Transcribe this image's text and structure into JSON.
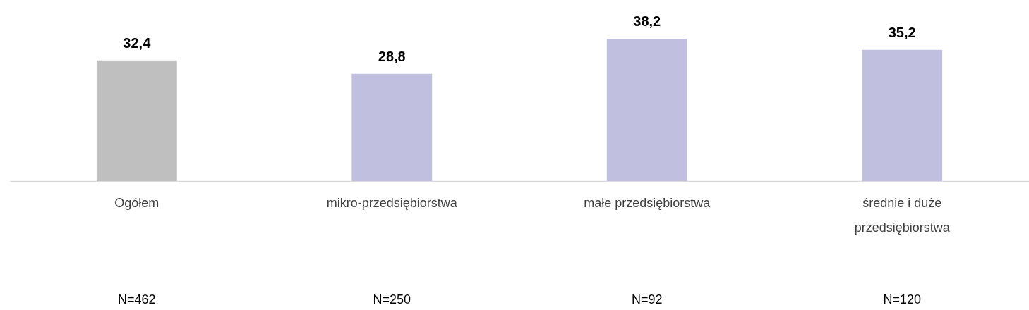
{
  "chart_data": {
    "type": "bar",
    "categories": [
      "Ogółem",
      "mikro-przedsiębiorstwa",
      "małe przedsiębiorstwa",
      "średnie i duże przedsiębiorstwa"
    ],
    "values": [
      32.4,
      28.8,
      38.2,
      35.2
    ],
    "colors": [
      "#bfbfbf",
      "#c0bfdf",
      "#c0bfdf",
      "#c0bfdf"
    ],
    "value_labels": [
      "32,4",
      "28,8",
      "38,2",
      "35,2"
    ],
    "annotations": [
      "N=462",
      "N=250",
      "N=92",
      "N=120"
    ]
  }
}
